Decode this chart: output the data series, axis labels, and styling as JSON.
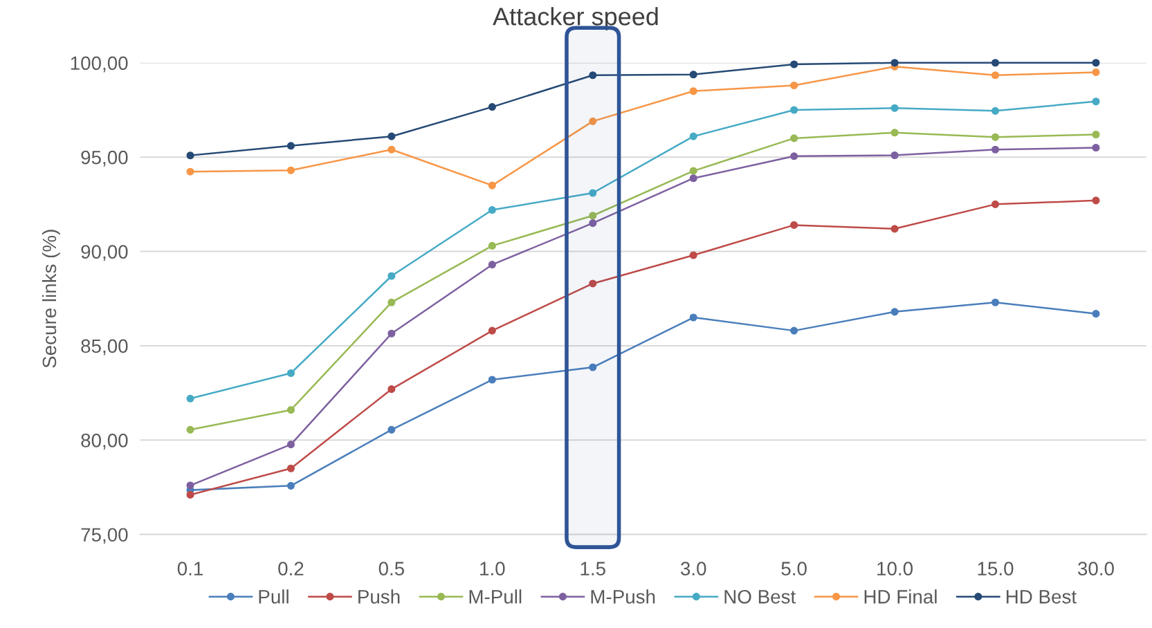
{
  "chart_data": {
    "type": "line",
    "title": "Attacker speed",
    "ylabel": "Secure links (%)",
    "categories": [
      "0.1",
      "0.2",
      "0.5",
      "1.0",
      "1.5",
      "3.0",
      "5.0",
      "10.0",
      "15.0",
      "30.0"
    ],
    "ylim": [
      75,
      100
    ],
    "yticks": [
      {
        "value": 75,
        "label": "75,00"
      },
      {
        "value": 80,
        "label": "80,00"
      },
      {
        "value": 85,
        "label": "85,00"
      },
      {
        "value": 90,
        "label": "90,00"
      },
      {
        "value": 95,
        "label": "95,00"
      },
      {
        "value": 100,
        "label": "100,00"
      }
    ],
    "bands": [
      {
        "axis": "x",
        "from": "1.5",
        "to": "1.5",
        "color": "#2f5597"
      }
    ],
    "grid": "y",
    "legend": "bottom",
    "marker": "circle",
    "line_style": "solid",
    "series": [
      {
        "name": "Pull",
        "color": "#4a7ebb",
        "values": [
          77.35,
          77.58,
          80.55,
          83.2,
          83.86,
          86.5,
          85.8,
          86.8,
          87.3,
          86.7
        ]
      },
      {
        "name": "Push",
        "color": "#be4b48",
        "values": [
          77.1,
          78.5,
          82.7,
          85.8,
          88.3,
          89.8,
          91.4,
          91.2,
          92.5,
          92.7
        ]
      },
      {
        "name": "M-Pull",
        "color": "#98b954",
        "values": [
          80.55,
          81.6,
          87.3,
          90.3,
          91.9,
          94.27,
          96.0,
          96.3,
          96.06,
          96.2
        ]
      },
      {
        "name": "M-Push",
        "color": "#7d60a0",
        "values": [
          77.6,
          79.77,
          85.65,
          89.3,
          91.5,
          93.88,
          95.05,
          95.1,
          95.4,
          95.5
        ]
      },
      {
        "name": "NO Best",
        "color": "#46aac5",
        "values": [
          82.2,
          83.55,
          88.7,
          92.2,
          93.1,
          96.1,
          97.5,
          97.6,
          97.45,
          97.95
        ]
      },
      {
        "name": "HD Final",
        "color": "#f79646",
        "values": [
          94.23,
          94.3,
          95.4,
          93.5,
          96.9,
          98.5,
          98.8,
          99.8,
          99.34,
          99.5
        ]
      },
      {
        "name": "HD Best",
        "color": "#264a75",
        "values": [
          95.09,
          95.6,
          96.1,
          97.66,
          99.34,
          99.38,
          99.92,
          100.0,
          100.0,
          100.0
        ]
      }
    ]
  }
}
